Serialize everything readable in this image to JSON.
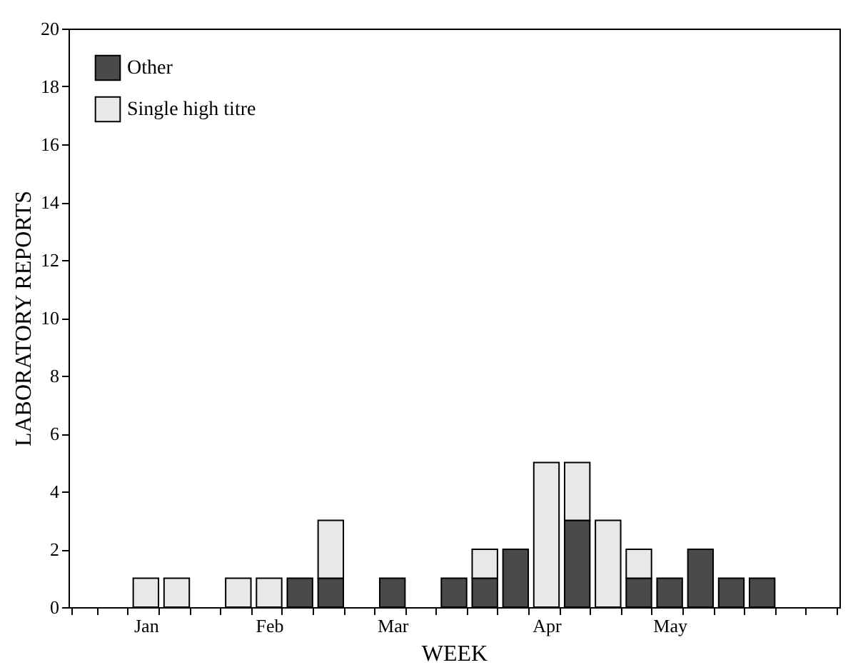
{
  "chart_data": {
    "type": "bar",
    "stacked": true,
    "xlabel": "WEEK",
    "ylabel": "LABORATORY REPORTS",
    "categories": [
      null,
      null,
      "Jan",
      null,
      null,
      null,
      "Feb",
      null,
      null,
      null,
      "Mar",
      null,
      null,
      null,
      null,
      "Apr",
      null,
      null,
      null,
      "May",
      null,
      null,
      null,
      null,
      null
    ],
    "series": [
      {
        "name": "Other",
        "color": "#4a4a4a",
        "values": [
          null,
          null,
          null,
          null,
          null,
          null,
          null,
          1,
          1,
          null,
          1,
          null,
          1,
          1,
          2,
          null,
          3,
          null,
          1,
          1,
          2,
          1,
          1,
          null,
          null
        ]
      },
      {
        "name": "Single high titre",
        "color": "#e8e8e8",
        "values": [
          null,
          null,
          1,
          1,
          null,
          1,
          1,
          null,
          2,
          null,
          null,
          null,
          null,
          1,
          null,
          5,
          2,
          3,
          1,
          null,
          null,
          null,
          null,
          null,
          null
        ]
      }
    ],
    "ylim": [
      0,
      20
    ],
    "yticks": [
      0,
      2,
      4,
      6,
      8,
      10,
      12,
      14,
      16,
      18,
      20
    ],
    "grid": false,
    "legend": "top left"
  }
}
